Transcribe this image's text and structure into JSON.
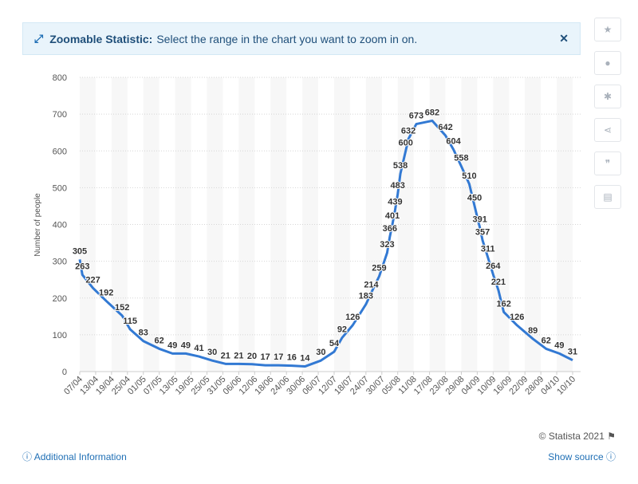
{
  "banner": {
    "title": "Zoomable Statistic:",
    "text": "Select the range in the chart you want to zoom in on."
  },
  "footer": {
    "copyright": "© Statista 2021",
    "additional_info": "Additional Information",
    "show_source": "Show source"
  },
  "chart_data": {
    "type": "line",
    "y_label": "Number of people",
    "x": [
      "07/04",
      "08/04",
      "12/04",
      "17/04",
      "23/04",
      "26/04",
      "01/05",
      "07/05",
      "12/05",
      "17/05",
      "22/05",
      "27/05",
      "01/06",
      "06/06",
      "11/06",
      "16/06",
      "21/06",
      "26/06",
      "01/07",
      "07/07",
      "12/07",
      "15/07",
      "19/07",
      "24/07",
      "26/07",
      "29/07",
      "01/08",
      "02/08",
      "03/08",
      "04/08",
      "05/08",
      "06/08",
      "08/08",
      "09/08",
      "12/08",
      "18/08",
      "23/08",
      "26/08",
      "29/08",
      "01/09",
      "03/09",
      "05/09",
      "06/09",
      "08/09",
      "10/09",
      "12/09",
      "14/09",
      "19/09",
      "25/09",
      "30/09",
      "05/10",
      "10/10"
    ],
    "series": [
      {
        "color": "#3279d3",
        "values": [
          305,
          263,
          227,
          192,
          152,
          115,
          83,
          62,
          49,
          49,
          41,
          30,
          21,
          21,
          20,
          17,
          17,
          16,
          14,
          30,
          54,
          92,
          126,
          183,
          214,
          259,
          323,
          366,
          401,
          439,
          483,
          538,
          600,
          632,
          673,
          682,
          642,
          604,
          558,
          510,
          450,
          391,
          357,
          311,
          264,
          221,
          162,
          126,
          89,
          62,
          49,
          31
        ]
      }
    ],
    "xlim": [
      "07/04",
      "13/10"
    ],
    "xticks": [
      "07/04",
      "13/04",
      "19/04",
      "25/04",
      "01/05",
      "07/05",
      "13/05",
      "19/05",
      "25/05",
      "31/05",
      "06/06",
      "12/06",
      "18/06",
      "24/06",
      "30/06",
      "06/07",
      "12/07",
      "18/07",
      "24/07",
      "30/07",
      "05/08",
      "11/08",
      "17/08",
      "23/08",
      "29/08",
      "04/09",
      "10/09",
      "16/09",
      "22/09",
      "28/09",
      "04/10",
      "10/10"
    ],
    "ylim": [
      0,
      800
    ],
    "yticks": [
      0,
      100,
      200,
      300,
      400,
      500,
      600,
      700,
      800
    ],
    "grid": true
  }
}
